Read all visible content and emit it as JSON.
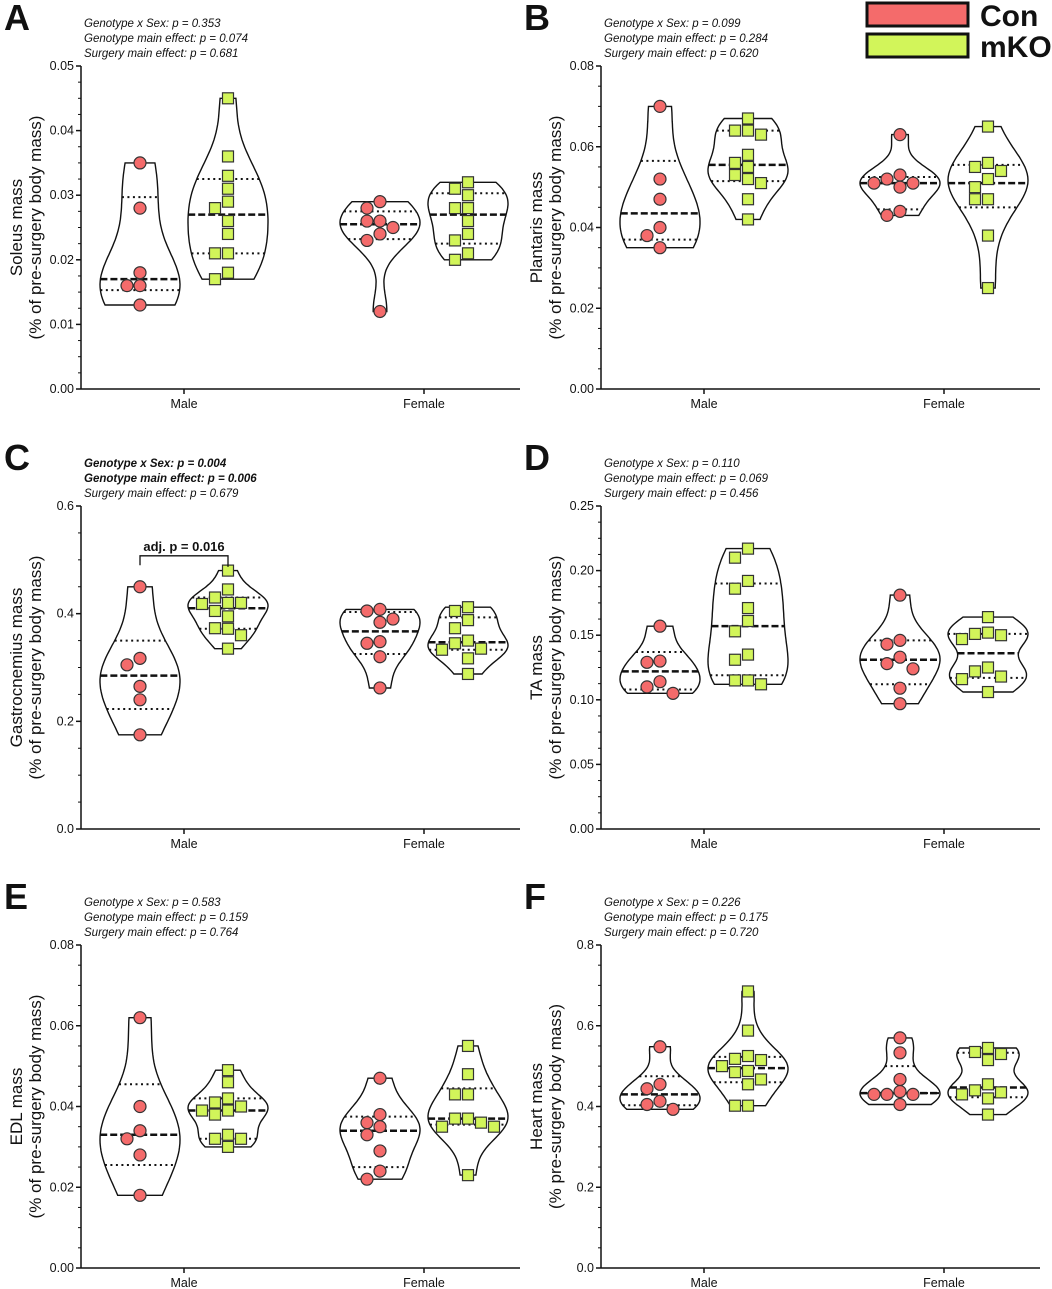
{
  "legend": {
    "items": [
      {
        "label": "Con",
        "color": "#F46B6B"
      },
      {
        "label": "mKO",
        "color": "#D2F55A"
      }
    ]
  },
  "chart_data": [
    {
      "type": "violin",
      "letter": "A",
      "stats": [
        {
          "text": "Genotype x Sex: p = 0.353",
          "bold": false
        },
        {
          "text": "Genotype main effect: p = 0.074",
          "bold": false
        },
        {
          "text": "Surgery main effect: p = 0.681",
          "bold": false
        }
      ],
      "ylabel": [
        "Soleus mass",
        "(% of pre-surgery body mass)"
      ],
      "ylim": [
        0,
        0.05
      ],
      "yticks": [
        "0.00",
        "0.01",
        "0.02",
        "0.03",
        "0.04",
        "0.05"
      ],
      "categories": [
        "Male",
        "Female"
      ],
      "groups": [
        {
          "sex": "Male",
          "genotype": "Con",
          "values": [
            0.035,
            0.028,
            0.018,
            0.016,
            0.016,
            0.013
          ],
          "median": 0.017,
          "q1": 0.0153,
          "q3": 0.0297
        },
        {
          "sex": "Male",
          "genotype": "mKO",
          "values": [
            0.045,
            0.036,
            0.033,
            0.031,
            0.029,
            0.028,
            0.026,
            0.024,
            0.021,
            0.021,
            0.018,
            0.017
          ],
          "median": 0.027,
          "q1": 0.021,
          "q3": 0.0325
        },
        {
          "sex": "Female",
          "genotype": "Con",
          "values": [
            0.029,
            0.028,
            0.026,
            0.026,
            0.025,
            0.024,
            0.023,
            0.012
          ],
          "median": 0.0255,
          "q1": 0.0232,
          "q3": 0.0275
        },
        {
          "sex": "Female",
          "genotype": "mKO",
          "values": [
            0.032,
            0.031,
            0.03,
            0.028,
            0.028,
            0.026,
            0.024,
            0.023,
            0.021,
            0.02
          ],
          "median": 0.027,
          "q1": 0.0225,
          "q3": 0.0303
        }
      ]
    },
    {
      "type": "violin",
      "letter": "B",
      "stats": [
        {
          "text": "Genotype x Sex: p = 0.099",
          "bold": false
        },
        {
          "text": "Genotype main effect: p = 0.284",
          "bold": false
        },
        {
          "text": "Surgery main effect: p = 0.620",
          "bold": false
        }
      ],
      "ylabel": [
        "Plantaris mass",
        "(% of pre-surgery body mass)"
      ],
      "ylim": [
        0,
        0.08
      ],
      "yticks": [
        "0.00",
        "0.02",
        "0.04",
        "0.06",
        "0.08"
      ],
      "categories": [
        "Male",
        "Female"
      ],
      "groups": [
        {
          "sex": "Male",
          "genotype": "Con",
          "values": [
            0.07,
            0.052,
            0.047,
            0.04,
            0.038,
            0.035
          ],
          "median": 0.0435,
          "q1": 0.037,
          "q3": 0.0565
        },
        {
          "sex": "Male",
          "genotype": "mKO",
          "values": [
            0.067,
            0.064,
            0.064,
            0.063,
            0.058,
            0.056,
            0.055,
            0.053,
            0.052,
            0.051,
            0.047,
            0.042
          ],
          "median": 0.0555,
          "q1": 0.0515,
          "q3": 0.064
        },
        {
          "sex": "Female",
          "genotype": "Con",
          "values": [
            0.063,
            0.053,
            0.052,
            0.051,
            0.051,
            0.05,
            0.044,
            0.043
          ],
          "median": 0.051,
          "q1": 0.0445,
          "q3": 0.0525
        },
        {
          "sex": "Female",
          "genotype": "mKO",
          "values": [
            0.065,
            0.056,
            0.055,
            0.054,
            0.052,
            0.05,
            0.047,
            0.047,
            0.038,
            0.025
          ],
          "median": 0.051,
          "q1": 0.045,
          "q3": 0.0555
        }
      ]
    },
    {
      "type": "violin",
      "letter": "C",
      "stats": [
        {
          "text": "Genotype x Sex: p = 0.004",
          "bold": true
        },
        {
          "text": "Genotype main effect: p = 0.006",
          "bold": true
        },
        {
          "text": "Surgery main effect: p = 0.679",
          "bold": false
        }
      ],
      "ylabel": [
        "Gastrocnemius mass",
        "(% of pre-surgery body mass)"
      ],
      "ylim": [
        0,
        0.6
      ],
      "yticks": [
        "0.0",
        "0.2",
        "0.4",
        "0.6"
      ],
      "categories": [
        "Male",
        "Female"
      ],
      "annotation": {
        "text": "adj. p = 0.016",
        "between": [
          "Male Con",
          "Male mKO"
        ]
      },
      "groups": [
        {
          "sex": "Male",
          "genotype": "Con",
          "values": [
            0.45,
            0.317,
            0.305,
            0.265,
            0.24,
            0.175
          ],
          "median": 0.285,
          "q1": 0.223,
          "q3": 0.35
        },
        {
          "sex": "Male",
          "genotype": "mKO",
          "values": [
            0.48,
            0.445,
            0.43,
            0.42,
            0.42,
            0.418,
            0.405,
            0.395,
            0.373,
            0.372,
            0.36,
            0.335
          ],
          "median": 0.41,
          "q1": 0.372,
          "q3": 0.43
        },
        {
          "sex": "Female",
          "genotype": "Con",
          "values": [
            0.408,
            0.405,
            0.39,
            0.384,
            0.348,
            0.345,
            0.32,
            0.262
          ],
          "median": 0.367,
          "q1": 0.325,
          "q3": 0.403
        },
        {
          "sex": "Female",
          "genotype": "mKO",
          "values": [
            0.412,
            0.405,
            0.388,
            0.373,
            0.35,
            0.345,
            0.335,
            0.333,
            0.317,
            0.288
          ],
          "median": 0.347,
          "q1": 0.333,
          "q3": 0.393
        }
      ]
    },
    {
      "type": "violin",
      "letter": "D",
      "stats": [
        {
          "text": "Genotype x Sex: p = 0.110",
          "bold": false
        },
        {
          "text": "Genotype main effect: p = 0.069",
          "bold": false
        },
        {
          "text": "Surgery main effect: p = 0.456",
          "bold": false
        }
      ],
      "ylabel": [
        "TA mass",
        "(% of pre-surgery body mass)"
      ],
      "ylim": [
        0,
        0.25
      ],
      "yticks": [
        "0.00",
        "0.05",
        "0.10",
        "0.15",
        "0.20",
        "0.25"
      ],
      "categories": [
        "Male",
        "Female"
      ],
      "groups": [
        {
          "sex": "Male",
          "genotype": "Con",
          "values": [
            0.157,
            0.13,
            0.129,
            0.114,
            0.11,
            0.105
          ],
          "median": 0.122,
          "q1": 0.108,
          "q3": 0.137
        },
        {
          "sex": "Male",
          "genotype": "mKO",
          "values": [
            0.217,
            0.21,
            0.192,
            0.186,
            0.171,
            0.161,
            0.153,
            0.135,
            0.131,
            0.115,
            0.115,
            0.112
          ],
          "median": 0.157,
          "q1": 0.119,
          "q3": 0.19
        },
        {
          "sex": "Female",
          "genotype": "Con",
          "values": [
            0.181,
            0.146,
            0.143,
            0.133,
            0.128,
            0.124,
            0.109,
            0.097
          ],
          "median": 0.131,
          "q1": 0.112,
          "q3": 0.146
        },
        {
          "sex": "Female",
          "genotype": "mKO",
          "values": [
            0.164,
            0.152,
            0.151,
            0.15,
            0.147,
            0.125,
            0.122,
            0.118,
            0.116,
            0.106
          ],
          "median": 0.136,
          "q1": 0.117,
          "q3": 0.151
        }
      ]
    },
    {
      "type": "violin",
      "letter": "E",
      "stats": [
        {
          "text": "Genotype x Sex: p = 0.583",
          "bold": false
        },
        {
          "text": "Genotype main effect: p = 0.159",
          "bold": false
        },
        {
          "text": "Surgery main effect: p = 0.764",
          "bold": false
        }
      ],
      "ylabel": [
        "EDL mass",
        "(% of pre-surgery body mass)"
      ],
      "ylim": [
        0,
        0.08
      ],
      "yticks": [
        "0.00",
        "0.02",
        "0.04",
        "0.06",
        "0.08"
      ],
      "categories": [
        "Male",
        "Female"
      ],
      "groups": [
        {
          "sex": "Male",
          "genotype": "Con",
          "values": [
            0.062,
            0.04,
            0.034,
            0.032,
            0.028,
            0.018
          ],
          "median": 0.033,
          "q1": 0.0255,
          "q3": 0.0455
        },
        {
          "sex": "Male",
          "genotype": "mKO",
          "values": [
            0.049,
            0.046,
            0.042,
            0.041,
            0.04,
            0.039,
            0.039,
            0.038,
            0.033,
            0.032,
            0.032,
            0.03
          ],
          "median": 0.039,
          "q1": 0.032,
          "q3": 0.042
        },
        {
          "sex": "Female",
          "genotype": "Con",
          "values": [
            0.047,
            0.038,
            0.036,
            0.035,
            0.033,
            0.029,
            0.024,
            0.022
          ],
          "median": 0.034,
          "q1": 0.025,
          "q3": 0.0375
        },
        {
          "sex": "Female",
          "genotype": "mKO",
          "values": [
            0.055,
            0.048,
            0.043,
            0.043,
            0.037,
            0.037,
            0.036,
            0.035,
            0.035,
            0.023
          ],
          "median": 0.037,
          "q1": 0.0355,
          "q3": 0.0445
        }
      ]
    },
    {
      "type": "violin",
      "letter": "F",
      "stats": [
        {
          "text": "Genotype x Sex: p = 0.226",
          "bold": false
        },
        {
          "text": "Genotype main effect: p = 0.175",
          "bold": false
        },
        {
          "text": "Surgery main effect: p = 0.720",
          "bold": false
        }
      ],
      "ylabel": [
        "Heart mass",
        "(% pre-surgery body mass)"
      ],
      "ylim": [
        0,
        0.8
      ],
      "yticks": [
        "0.0",
        "0.2",
        "0.4",
        "0.6",
        "0.8"
      ],
      "categories": [
        "Male",
        "Female"
      ],
      "groups": [
        {
          "sex": "Male",
          "genotype": "Con",
          "values": [
            0.548,
            0.455,
            0.444,
            0.413,
            0.405,
            0.393
          ],
          "median": 0.43,
          "q1": 0.403,
          "q3": 0.475
        },
        {
          "sex": "Male",
          "genotype": "mKO",
          "values": [
            0.685,
            0.588,
            0.525,
            0.518,
            0.515,
            0.5,
            0.488,
            0.485,
            0.467,
            0.455,
            0.402,
            0.402
          ],
          "median": 0.495,
          "q1": 0.46,
          "q3": 0.523
        },
        {
          "sex": "Female",
          "genotype": "Con",
          "values": [
            0.57,
            0.533,
            0.467,
            0.437,
            0.43,
            0.43,
            0.43,
            0.405
          ],
          "median": 0.433,
          "q1": 0.433,
          "q3": 0.5
        },
        {
          "sex": "Female",
          "genotype": "mKO",
          "values": [
            0.545,
            0.535,
            0.53,
            0.515,
            0.455,
            0.44,
            0.435,
            0.43,
            0.42,
            0.38
          ],
          "median": 0.447,
          "q1": 0.423,
          "q3": 0.533
        }
      ]
    }
  ]
}
